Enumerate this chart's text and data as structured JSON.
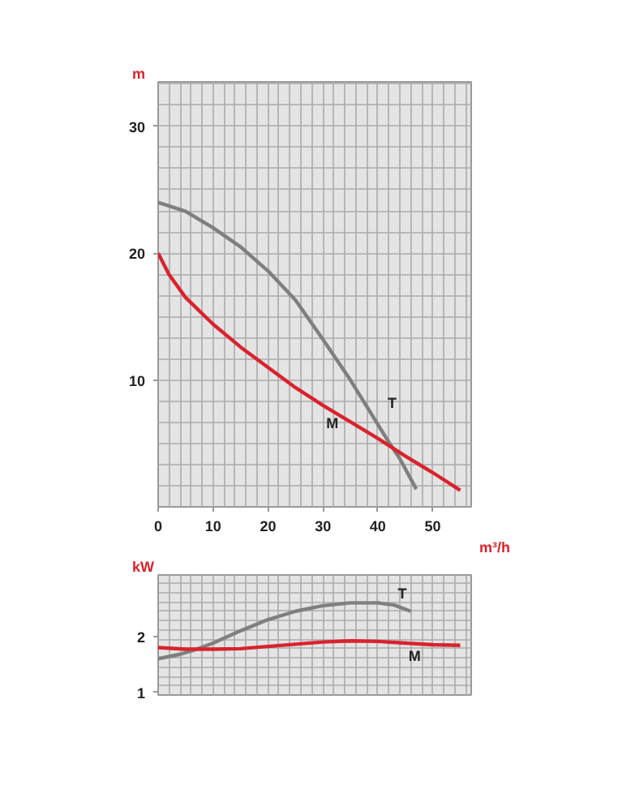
{
  "chart_data": [
    {
      "type": "line",
      "xlabel": "m³/h",
      "ylabel": "m",
      "xlim": [
        0,
        57
      ],
      "ylim": [
        0,
        33.5
      ],
      "xticks": [
        0,
        10,
        20,
        30,
        40,
        50
      ],
      "yticks": [
        10,
        20,
        30
      ],
      "grid": true,
      "marker": "none",
      "line_style": "solid",
      "series": [
        {
          "name": "T",
          "color": "#7f7f7f",
          "x": [
            0,
            5,
            10,
            15,
            20,
            25,
            30,
            35,
            38,
            40,
            42,
            44,
            46,
            47
          ],
          "values": [
            24,
            23.3,
            22,
            20.5,
            18.6,
            16.3,
            13.2,
            10,
            7.9,
            6.5,
            5.1,
            3.8,
            2.2,
            1.4
          ]
        },
        {
          "name": "M",
          "color": "#d9232d",
          "x": [
            0,
            2,
            5,
            10,
            15,
            20,
            25,
            30,
            35,
            40,
            45,
            50,
            55
          ],
          "values": [
            20,
            18.3,
            16.5,
            14.4,
            12.6,
            11,
            9.4,
            8,
            6.7,
            5.4,
            4,
            2.7,
            1.3
          ]
        }
      ]
    },
    {
      "type": "line",
      "ylabel": "kW",
      "xlim": [
        0,
        57
      ],
      "ylim": [
        0.95,
        3.1
      ],
      "yticks": [
        1,
        2
      ],
      "tick_labels": "y",
      "grid": true,
      "marker": "none",
      "line_style": "solid",
      "series": [
        {
          "name": "T",
          "color": "#7f7f7f",
          "x": [
            0,
            4,
            7,
            10,
            15,
            20,
            25,
            30,
            35,
            40,
            43,
            46
          ],
          "values": [
            1.6,
            1.68,
            1.77,
            1.88,
            2.1,
            2.3,
            2.45,
            2.55,
            2.6,
            2.6,
            2.56,
            2.45
          ]
        },
        {
          "name": "M",
          "color": "#d9232d",
          "x": [
            0,
            5,
            10,
            15,
            20,
            25,
            30,
            35,
            40,
            45,
            50,
            55
          ],
          "values": [
            1.8,
            1.77,
            1.77,
            1.78,
            1.82,
            1.86,
            1.9,
            1.92,
            1.91,
            1.88,
            1.85,
            1.84
          ]
        }
      ]
    }
  ]
}
